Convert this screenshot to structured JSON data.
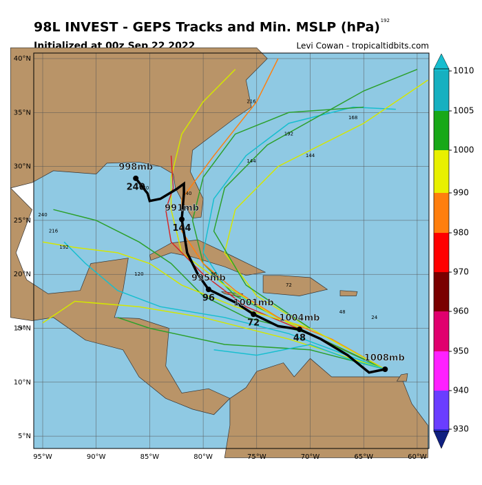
{
  "header": {
    "title": "98L INVEST - GEPS Tracks and Min. MSLP (hPa)",
    "subtitle": "Initialized at 00z Sep 22 2022",
    "credit": "Levi Cowan - tropicaltidbits.com"
  },
  "lat_labels": [
    "40°N",
    "35°N",
    "30°N",
    "25°N",
    "20°N",
    "15°N",
    "10°N",
    "5°N"
  ],
  "lon_labels": [
    "95°W",
    "90°W",
    "85°W",
    "80°W",
    "75°W",
    "70°W",
    "65°W",
    "60°W"
  ],
  "colorbar": {
    "ticks": [
      1010,
      1005,
      1000,
      990,
      980,
      970,
      960,
      950,
      940,
      930
    ]
  },
  "mean_track": [
    {
      "pressure": "1008mb"
    },
    {
      "pressure": "1004mb",
      "hour": "48"
    },
    {
      "pressure": "1001mb",
      "hour": "72"
    },
    {
      "pressure": "995mb",
      "hour": "96"
    },
    {
      "pressure": "991mb",
      "hour": "144"
    },
    {
      "pressure": "998mb",
      "hour": "240"
    }
  ],
  "stray_labels": [
    "192",
    "240",
    "240",
    "216",
    "192",
    "168",
    "240",
    "240",
    "216",
    "192",
    "144",
    "144",
    "120",
    "96",
    "72",
    "48",
    "24"
  ]
}
